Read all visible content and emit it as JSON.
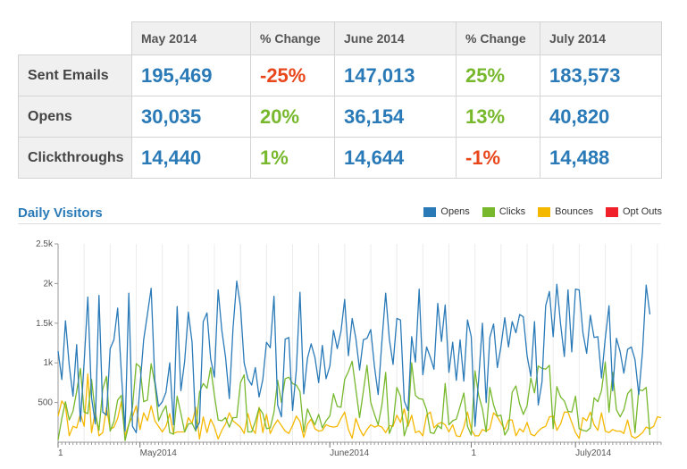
{
  "table": {
    "headers": [
      "May 2014",
      "% Change",
      "June 2014",
      "% Change",
      "July 2014"
    ],
    "rows": [
      {
        "label": "Sent Emails",
        "cells": [
          "195,469",
          "-25%",
          "147,013",
          "25%",
          "183,573"
        ]
      },
      {
        "label": "Opens",
        "cells": [
          "30,035",
          "20%",
          "36,154",
          "13%",
          "40,820"
        ]
      },
      {
        "label": "Clickthroughs",
        "cells": [
          "14,440",
          "1%",
          "14,644",
          "-1%",
          "14,488"
        ]
      }
    ]
  },
  "colors": {
    "value": "#2a7ab8",
    "positive": "#77b82d",
    "negative": "#e8471c"
  },
  "chart_data": {
    "type": "line",
    "title": "Daily Visitors",
    "xlabel": "",
    "ylabel": "",
    "ylim": [
      0,
      2500
    ],
    "y_ticks": [
      500,
      1000,
      1500,
      2000,
      2500
    ],
    "y_tick_labels": [
      "500",
      "1k",
      "1.5k",
      "2k",
      "2.5k"
    ],
    "x_tick_labels": [
      "1",
      "May2014",
      "June2014",
      "1",
      "July2014"
    ],
    "x_tick_index": [
      0,
      22,
      73,
      111,
      139
    ],
    "grid": "vertical",
    "legend_position": "top-right",
    "series": [
      {
        "name": "Opens",
        "color": "#2a7ab8",
        "values": [
          1150,
          790,
          1530,
          970,
          580,
          1230,
          260,
          1010,
          1830,
          560,
          230,
          1850,
          380,
          340,
          1180,
          1290,
          1690,
          880,
          140,
          1880,
          200,
          120,
          700,
          1290,
          1610,
          1940,
          780,
          450,
          510,
          630,
          1000,
          220,
          1710,
          650,
          1020,
          1640,
          1260,
          160,
          250,
          1520,
          1630,
          1050,
          820,
          1920,
          1410,
          1070,
          550,
          1430,
          2030,
          1710,
          1000,
          800,
          720,
          940,
          570,
          790,
          1260,
          1190,
          1840,
          470,
          320,
          1300,
          1320,
          400,
          910,
          1890,
          610,
          1060,
          1240,
          1070,
          750,
          1220,
          800,
          960,
          1410,
          1180,
          1400,
          1800,
          1090,
          1560,
          1310,
          910,
          1290,
          1310,
          1420,
          950,
          600,
          1270,
          1880,
          1300,
          980,
          1560,
          1540,
          520,
          400,
          1330,
          1010,
          1930,
          850,
          1200,
          1070,
          920,
          1750,
          1270,
          1730,
          880,
          1260,
          780,
          1290,
          770,
          1540,
          1330,
          200,
          790,
          1500,
          500,
          1320,
          1490,
          940,
          1210,
          1570,
          1200,
          1520,
          1380,
          1610,
          1580,
          1090,
          830,
          1520,
          470,
          760,
          1720,
          1900,
          1330,
          1990,
          1490,
          1080,
          1920,
          1140,
          1930,
          1920,
          1380,
          1120,
          1600,
          1320,
          1330,
          810,
          1310,
          1720,
          650,
          1310,
          1140,
          870,
          1170,
          1200,
          1040,
          600,
          1140,
          1980,
          1610
        ]
      },
      {
        "name": "Clicks",
        "color": "#77b82d",
        "values": [
          30,
          300,
          510,
          280,
          390,
          640,
          930,
          380,
          360,
          790,
          360,
          150,
          670,
          830,
          140,
          260,
          530,
          590,
          20,
          220,
          440,
          990,
          950,
          510,
          530,
          990,
          740,
          270,
          380,
          460,
          120,
          100,
          580,
          360,
          130,
          230,
          240,
          140,
          630,
          740,
          680,
          940,
          590,
          280,
          270,
          310,
          190,
          310,
          310,
          750,
          850,
          130,
          130,
          260,
          430,
          360,
          170,
          180,
          380,
          780,
          500,
          800,
          820,
          740,
          720,
          640,
          130,
          420,
          310,
          220,
          350,
          180,
          270,
          330,
          610,
          450,
          440,
          790,
          890,
          1020,
          670,
          310,
          640,
          970,
          500,
          350,
          220,
          470,
          880,
          110,
          230,
          690,
          580,
          80,
          240,
          1000,
          590,
          550,
          540,
          410,
          120,
          110,
          210,
          170,
          740,
          220,
          270,
          290,
          450,
          620,
          200,
          90,
          900,
          590,
          420,
          130,
          690,
          470,
          330,
          340,
          90,
          170,
          630,
          710,
          480,
          350,
          460,
          810,
          620,
          960,
          930,
          920,
          970,
          170,
          700,
          570,
          520,
          390,
          380,
          580,
          170,
          150,
          140,
          180,
          560,
          510,
          650,
          1010,
          380,
          880,
          410,
          320,
          410,
          610,
          670,
          120,
          660,
          650,
          690,
          90
        ]
      },
      {
        "name": "Bounces",
        "color": "#f5b800",
        "values": [
          330,
          520,
          450,
          80,
          200,
          180,
          360,
          200,
          860,
          120,
          400,
          80,
          120,
          440,
          160,
          190,
          300,
          510,
          80,
          230,
          320,
          460,
          160,
          370,
          270,
          460,
          270,
          200,
          130,
          200,
          360,
          110,
          130,
          130,
          130,
          310,
          240,
          440,
          40,
          320,
          120,
          290,
          190,
          40,
          150,
          230,
          370,
          270,
          230,
          190,
          110,
          360,
          180,
          110,
          440,
          120,
          350,
          110,
          210,
          280,
          210,
          140,
          110,
          210,
          330,
          260,
          60,
          230,
          290,
          170,
          140,
          150,
          220,
          200,
          190,
          200,
          300,
          380,
          160,
          50,
          300,
          170,
          80,
          160,
          220,
          190,
          210,
          190,
          120,
          210,
          200,
          340,
          250,
          420,
          200,
          340,
          120,
          140,
          80,
          340,
          380,
          180,
          230,
          250,
          220,
          130,
          220,
          80,
          70,
          190,
          380,
          160,
          80,
          80,
          160,
          140,
          170,
          370,
          320,
          240,
          160,
          280,
          280,
          80,
          170,
          130,
          250,
          100,
          80,
          140,
          180,
          200,
          320,
          330,
          150,
          230,
          380,
          380,
          250,
          120,
          50,
          310,
          270,
          380,
          220,
          150,
          370,
          140,
          120,
          160,
          140,
          140,
          110,
          280,
          80,
          50,
          80,
          120,
          190,
          170,
          200,
          320,
          310
        ]
      },
      {
        "name": "Opt Outs",
        "color": "#f0212a",
        "values": []
      }
    ]
  }
}
